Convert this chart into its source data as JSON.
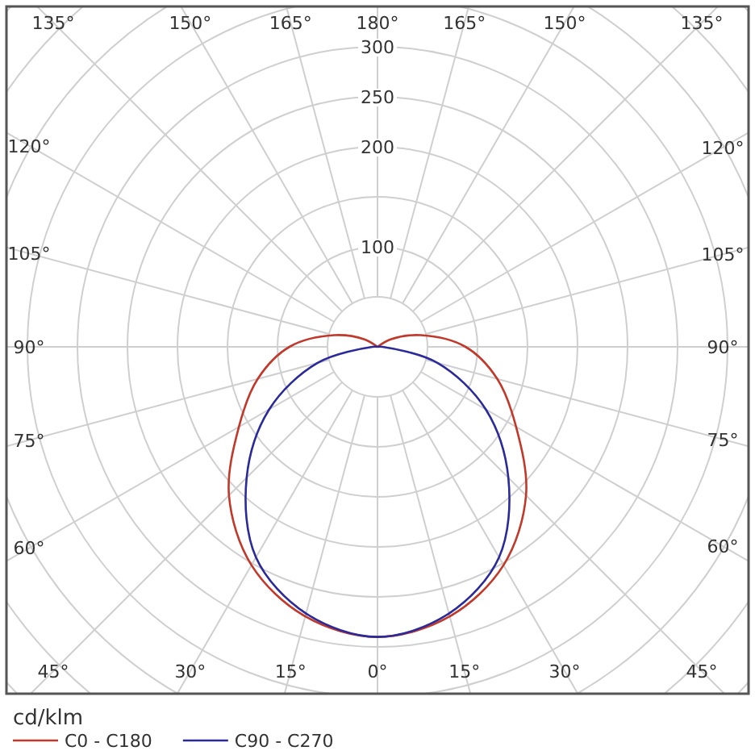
{
  "chart_data": {
    "type": "radar",
    "ylabel": "cd/klm",
    "categories": [
      "180°",
      "165°",
      "150°",
      "135°",
      "120°",
      "105°",
      "90°",
      "75°",
      "60°",
      "45°",
      "30°",
      "15°",
      "0°",
      "15°",
      "30°",
      "45°",
      "60°",
      "75°",
      "90°",
      "105°",
      "120°",
      "135°",
      "150°",
      "165°"
    ],
    "series": [
      {
        "name": "C0 - C180",
        "color": "#c0392b",
        "values": [
          0,
          0,
          0,
          0,
          15,
          45,
          88,
          124,
          160,
          210,
          252,
          279,
          290,
          279,
          252,
          210,
          160,
          124,
          88,
          45,
          15,
          0,
          0,
          0
        ]
      },
      {
        "name": "C90 - C270",
        "color": "#2a2a9a",
        "values": [
          0,
          0,
          0,
          0,
          0,
          0,
          5,
          62,
          125,
          185,
          243,
          276,
          290,
          276,
          243,
          185,
          125,
          62,
          5,
          0,
          0,
          0,
          0,
          0
        ]
      }
    ],
    "ylim": [
      0,
      650
    ],
    "yticks": [
      100,
      200,
      250,
      300
    ],
    "grid": true,
    "legend": "bottom left",
    "line_style": "solid",
    "marker": "none"
  }
}
